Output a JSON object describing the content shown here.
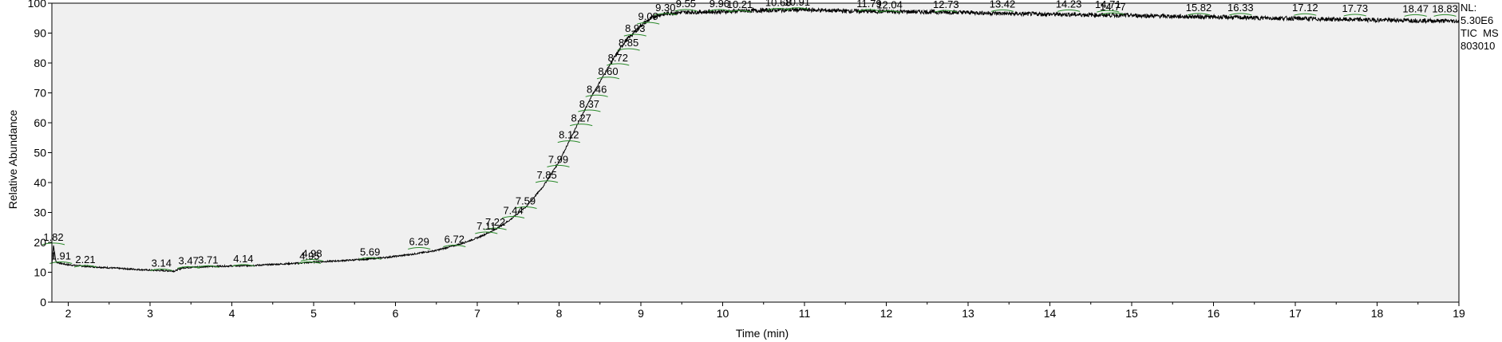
{
  "chart_data": {
    "type": "line",
    "title": "",
    "xlabel": "Time (min)",
    "ylabel": "Relative Abundance",
    "xlim": [
      1.8,
      19.0
    ],
    "ylim": [
      0,
      100
    ],
    "x_ticks": [
      2,
      3,
      4,
      5,
      6,
      7,
      8,
      9,
      10,
      11,
      12,
      13,
      14,
      15,
      16,
      17,
      18,
      19
    ],
    "y_ticks": [
      0,
      10,
      20,
      30,
      40,
      50,
      60,
      70,
      80,
      90,
      100
    ],
    "info_text": [
      "NL:",
      "5.30E6",
      "TIC  MS",
      "803010"
    ],
    "series": [
      {
        "color": "#000000",
        "x": [
          1.8,
          1.82,
          1.85,
          1.9,
          2.0,
          2.2,
          2.5,
          2.8,
          3.0,
          3.2,
          3.3,
          3.4,
          3.6,
          3.8,
          4.0,
          4.2,
          4.5,
          4.8,
          5.0,
          5.3,
          5.6,
          5.9,
          6.2,
          6.5,
          6.8,
          7.0,
          7.2,
          7.4,
          7.6,
          7.8,
          8.0,
          8.2,
          8.4,
          8.6,
          8.8,
          9.0,
          9.1,
          9.2,
          9.4,
          9.6,
          10.0,
          10.5,
          11.0,
          11.5,
          12.0,
          12.5,
          13.0,
          13.5,
          14.0,
          14.5,
          15.0,
          15.5,
          16.0,
          16.5,
          17.0,
          17.5,
          18.0,
          18.5,
          19.0
        ],
        "y": [
          12.5,
          19.0,
          13.5,
          13.0,
          12.5,
          12.0,
          11.5,
          11.0,
          10.7,
          10.5,
          10.4,
          11.5,
          11.8,
          12.0,
          12.1,
          12.2,
          12.6,
          13.0,
          13.4,
          13.8,
          14.3,
          15.0,
          16.0,
          17.3,
          19.5,
          21.5,
          24.0,
          27.5,
          32.0,
          38.5,
          47.0,
          58.0,
          69.0,
          78.5,
          87.0,
          92.5,
          94.5,
          96.0,
          96.8,
          97.0,
          97.2,
          97.6,
          97.8,
          97.4,
          97.2,
          97.1,
          96.9,
          96.5,
          96.3,
          96.1,
          95.9,
          95.6,
          95.4,
          95.1,
          94.9,
          94.6,
          94.4,
          94.2,
          94.0
        ]
      }
    ],
    "peak_labels": [
      {
        "label": "1.82",
        "x": 1.82,
        "y": 19.5
      },
      {
        "label": "1.91",
        "x": 1.91,
        "y": 13.2
      },
      {
        "label": "2.21",
        "x": 2.21,
        "y": 12.0
      },
      {
        "label": "3.14",
        "x": 3.14,
        "y": 10.8
      },
      {
        "label": "3.47",
        "x": 3.47,
        "y": 11.6
      },
      {
        "label": "3.71",
        "x": 3.71,
        "y": 11.9
      },
      {
        "label": "4.14",
        "x": 4.14,
        "y": 12.3
      },
      {
        "label": "4.95",
        "x": 4.95,
        "y": 13.2
      },
      {
        "label": "4.98",
        "x": 4.98,
        "y": 14.0
      },
      {
        "label": "5.69",
        "x": 5.69,
        "y": 14.6
      },
      {
        "label": "6.29",
        "x": 6.29,
        "y": 18.0
      },
      {
        "label": "6.72",
        "x": 6.72,
        "y": 18.8
      },
      {
        "label": "7.11",
        "x": 7.11,
        "y": 23.2
      },
      {
        "label": "7.22",
        "x": 7.22,
        "y": 24.5
      },
      {
        "label": "7.44",
        "x": 7.44,
        "y": 28.4
      },
      {
        "label": "7.59",
        "x": 7.59,
        "y": 31.6
      },
      {
        "label": "7.85",
        "x": 7.85,
        "y": 40.3
      },
      {
        "label": "7.99",
        "x": 7.99,
        "y": 45.5
      },
      {
        "label": "8.12",
        "x": 8.12,
        "y": 53.7
      },
      {
        "label": "8.27",
        "x": 8.27,
        "y": 59.3
      },
      {
        "label": "8.37",
        "x": 8.37,
        "y": 64.0
      },
      {
        "label": "8.46",
        "x": 8.46,
        "y": 69.0
      },
      {
        "label": "8.60",
        "x": 8.6,
        "y": 75.0
      },
      {
        "label": "8.72",
        "x": 8.72,
        "y": 79.5
      },
      {
        "label": "8.85",
        "x": 8.85,
        "y": 84.5
      },
      {
        "label": "8.93",
        "x": 8.93,
        "y": 89.3
      },
      {
        "label": "9.09",
        "x": 9.09,
        "y": 93.3
      },
      {
        "label": "9.30",
        "x": 9.3,
        "y": 96.3
      },
      {
        "label": "9.55",
        "x": 9.55,
        "y": 97.6
      },
      {
        "label": "9.96",
        "x": 9.96,
        "y": 97.6
      },
      {
        "label": "10.21",
        "x": 10.21,
        "y": 97.3
      },
      {
        "label": "10.68",
        "x": 10.68,
        "y": 98.0
      },
      {
        "label": "10.91",
        "x": 10.91,
        "y": 98.2
      },
      {
        "label": "11.79",
        "x": 11.79,
        "y": 97.6
      },
      {
        "label": "12.04",
        "x": 12.04,
        "y": 97.2
      },
      {
        "label": "12.73",
        "x": 12.73,
        "y": 97.3
      },
      {
        "label": "13.42",
        "x": 13.42,
        "y": 97.5
      },
      {
        "label": "14.23",
        "x": 14.23,
        "y": 97.5
      },
      {
        "label": "14.71",
        "x": 14.71,
        "y": 97.3
      },
      {
        "label": "14.77",
        "x": 14.77,
        "y": 96.5
      },
      {
        "label": "15.82",
        "x": 15.82,
        "y": 96.3
      },
      {
        "label": "16.33",
        "x": 16.33,
        "y": 96.3
      },
      {
        "label": "17.12",
        "x": 17.12,
        "y": 96.2
      },
      {
        "label": "17.73",
        "x": 17.73,
        "y": 96.0
      },
      {
        "label": "18.47",
        "x": 18.47,
        "y": 95.9
      },
      {
        "label": "18.83",
        "x": 18.83,
        "y": 95.9
      }
    ],
    "grid": false,
    "legend": "none",
    "colors": {
      "plot_background": "#f0f0f0",
      "trace": "#000000",
      "peak_marker": "#2a8a2a",
      "axis": "#000000"
    }
  }
}
